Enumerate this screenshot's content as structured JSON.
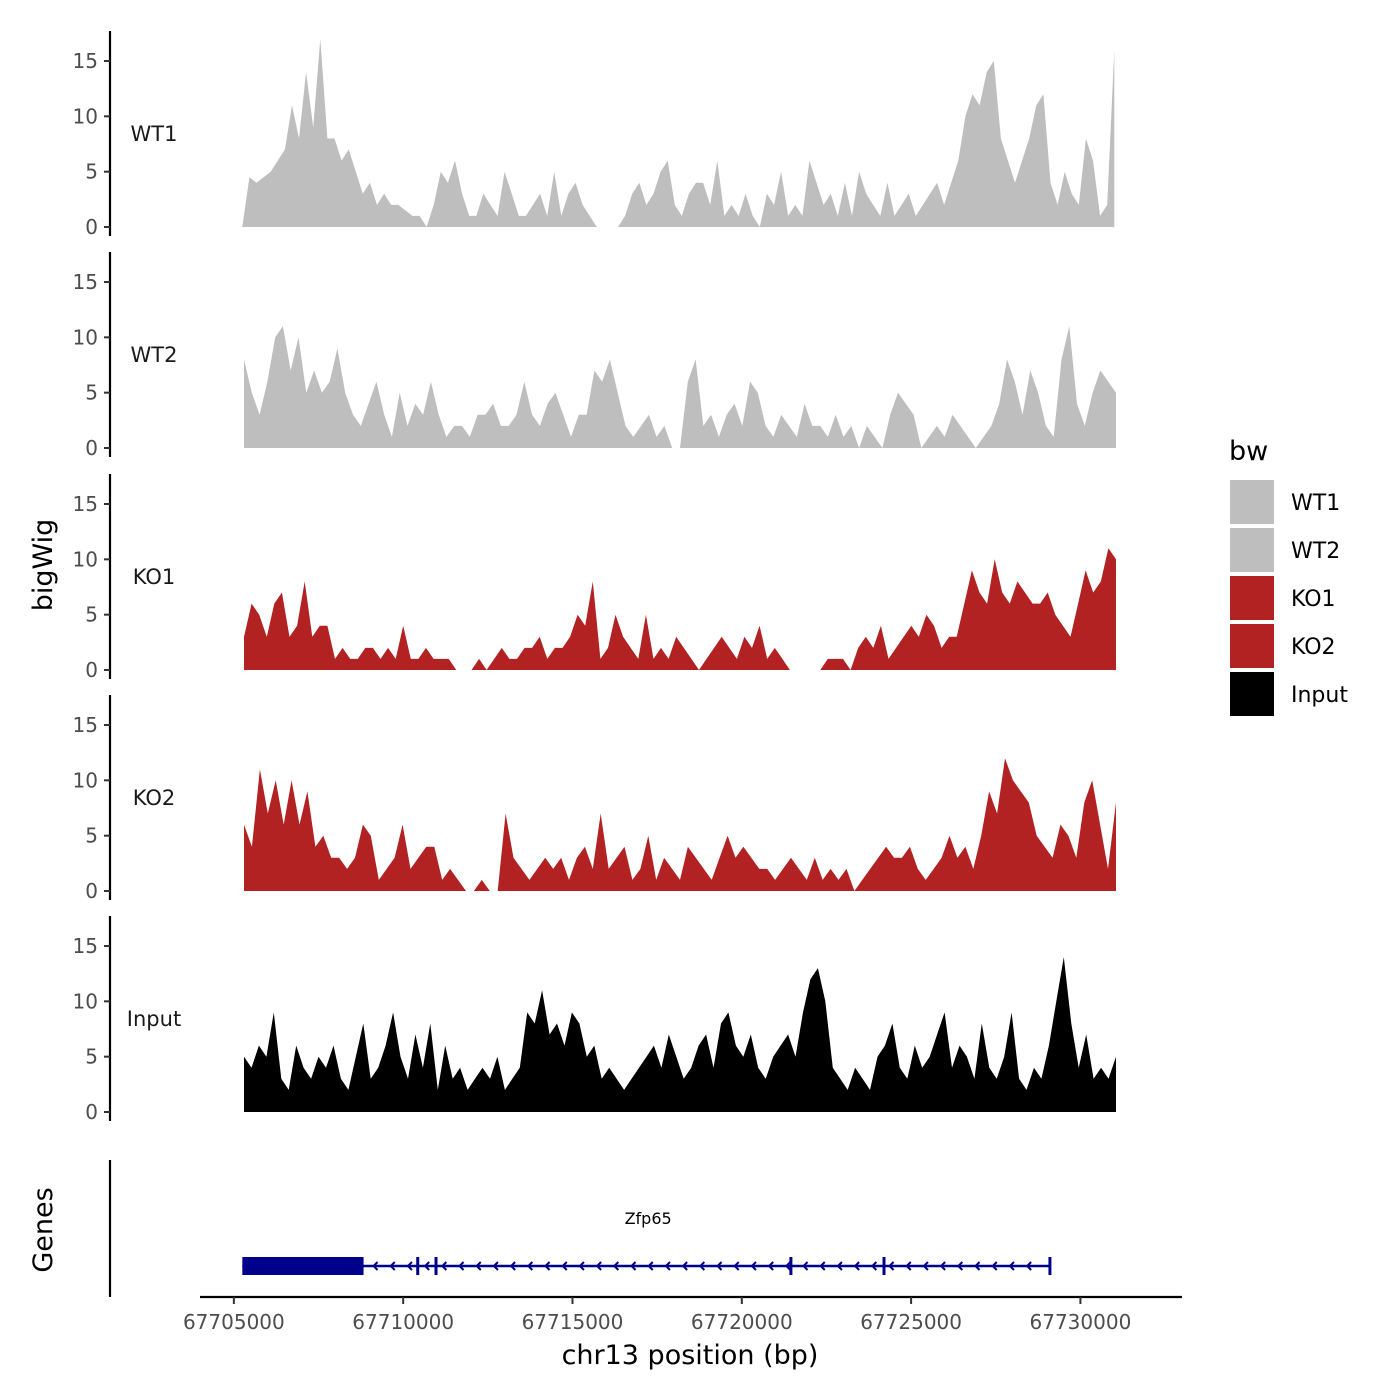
{
  "chart_data": {
    "type": "area",
    "ylabel": "bigWig",
    "xlabel": "chr13 position (bp)",
    "ylim": [
      0,
      17.5
    ],
    "yticks": [
      0,
      5,
      10,
      15
    ],
    "xlim": [
      67704000,
      67733000
    ],
    "xticks": [
      67705000,
      67710000,
      67715000,
      67720000,
      67725000,
      67730000
    ],
    "xtick_labels": [
      "67705000",
      "67710000",
      "67715000",
      "67720000",
      "67725000",
      "67730000"
    ],
    "legend": {
      "title": "bw",
      "position": "right",
      "entries": [
        {
          "name": "WT1",
          "color": "#bebebe"
        },
        {
          "name": "WT2",
          "color": "#bebebe"
        },
        {
          "name": "KO1",
          "color": "#b22222"
        },
        {
          "name": "KO2",
          "color": "#b22222"
        },
        {
          "name": "Input",
          "color": "#000000"
        }
      ]
    },
    "series": [
      {
        "name": "WT1",
        "color": "#bebebe",
        "x_start": 67705250,
        "x_end": 67731000,
        "values": [
          0,
          4.5,
          4,
          4.5,
          5,
          6,
          7,
          11,
          8,
          14,
          9,
          17,
          8,
          8,
          6,
          7,
          5,
          3,
          4,
          2,
          3,
          2,
          2,
          1.5,
          1,
          1,
          0,
          2,
          5,
          4,
          6,
          3,
          1,
          1,
          3,
          2,
          1,
          5,
          3,
          1,
          1,
          2,
          3,
          1,
          5,
          1,
          3,
          4,
          2,
          1,
          0,
          0,
          0,
          0,
          1,
          3,
          4,
          2,
          3,
          5,
          6,
          2,
          1,
          3,
          4,
          4,
          2,
          6,
          1,
          2,
          1,
          3,
          1,
          0,
          3,
          2,
          5,
          1,
          2,
          1,
          6,
          4,
          2,
          3,
          1,
          4,
          1,
          5,
          3,
          2,
          1,
          4,
          1,
          2,
          3,
          1,
          2,
          3,
          4,
          2,
          4,
          6,
          10,
          12,
          11,
          14,
          15,
          8,
          6,
          4,
          6,
          8,
          11,
          12,
          4,
          2,
          5,
          3,
          2,
          8,
          6,
          1,
          2,
          16
        ]
      },
      {
        "name": "WT2",
        "color": "#bebebe",
        "x_start": 67705300,
        "x_end": 67731050,
        "values": [
          8,
          5,
          3,
          6,
          10,
          11,
          7,
          10,
          5,
          7,
          5,
          6,
          9,
          5,
          3,
          2,
          4,
          6,
          3,
          1,
          5,
          2,
          4,
          3,
          6,
          3,
          1,
          2,
          2,
          1,
          3,
          3,
          4,
          2,
          2,
          3,
          6,
          3,
          2,
          4,
          5,
          3,
          1,
          3,
          3,
          7,
          6,
          8,
          5,
          2,
          1,
          2,
          3,
          1,
          2,
          0,
          0,
          6,
          8,
          2,
          3,
          1,
          3,
          4,
          2,
          6,
          5,
          2,
          1,
          3,
          2,
          1,
          4,
          2,
          2,
          1,
          3,
          1,
          2,
          0,
          2,
          1,
          0,
          3,
          5,
          4,
          3,
          0,
          1,
          2,
          1,
          3,
          2,
          1,
          0,
          1,
          2,
          4,
          8,
          6,
          3,
          7,
          5,
          2,
          1,
          8,
          11,
          4,
          2,
          5,
          7,
          6,
          5
        ]
      },
      {
        "name": "KO1",
        "color": "#b22222",
        "x_start": 67705300,
        "x_end": 67731050,
        "values": [
          3,
          6,
          5,
          3,
          6,
          7,
          3,
          4,
          8,
          3,
          4,
          4,
          1,
          2,
          1,
          1,
          2,
          2,
          1,
          2,
          1,
          4,
          1,
          1,
          2,
          1,
          1,
          1,
          0,
          0,
          0,
          1,
          0,
          1,
          2,
          1,
          1,
          2,
          2,
          3,
          1,
          2,
          2,
          3,
          5,
          4,
          8,
          1,
          2,
          5,
          3,
          2,
          1,
          5,
          1,
          2,
          1,
          3,
          2,
          1,
          0,
          1,
          2,
          3,
          2,
          1,
          3,
          2,
          4,
          1,
          2,
          1,
          0,
          0,
          0,
          0,
          0,
          1,
          1,
          1,
          0,
          2,
          3,
          2,
          4,
          1,
          2,
          3,
          4,
          3,
          5,
          4,
          2,
          3,
          3,
          6,
          9,
          7,
          6,
          10,
          7,
          6,
          8,
          7,
          6,
          6,
          7,
          5,
          4,
          3,
          6,
          9,
          7,
          8,
          11,
          10
        ]
      },
      {
        "name": "KO2",
        "color": "#b22222",
        "x_start": 67705300,
        "x_end": 67731050,
        "values": [
          6,
          4,
          11,
          7,
          10,
          6,
          10,
          6,
          9,
          4,
          5,
          3,
          3,
          2,
          3,
          6,
          5,
          1,
          2,
          3,
          6,
          2,
          3,
          4,
          4,
          1,
          2,
          1,
          0,
          0,
          1,
          0,
          0,
          7,
          3,
          2,
          1,
          2,
          3,
          2,
          3,
          1,
          3,
          4,
          2,
          7,
          2,
          3,
          4,
          1,
          2,
          5,
          1,
          3,
          2,
          1,
          4,
          3,
          2,
          1,
          3,
          5,
          3,
          4,
          3,
          2,
          2,
          1,
          2,
          3,
          2,
          1,
          3,
          1,
          2,
          1,
          2,
          0,
          1,
          2,
          3,
          4,
          3,
          3,
          4,
          2,
          1,
          2,
          3,
          5,
          3,
          4,
          2,
          5,
          9,
          7,
          12,
          10,
          9,
          8,
          5,
          4,
          3,
          6,
          5,
          3,
          8,
          10,
          6,
          2,
          8
        ]
      },
      {
        "name": "Input",
        "color": "#000000",
        "x_start": 67705300,
        "x_end": 67731050,
        "values": [
          5,
          4,
          6,
          5,
          9,
          3,
          2,
          6,
          4,
          3,
          5,
          4,
          6,
          3,
          2,
          5,
          8,
          3,
          4,
          6,
          9,
          5,
          3,
          7,
          4,
          8,
          2,
          6,
          3,
          4,
          2,
          3,
          4,
          3,
          5,
          2,
          3,
          4,
          9,
          8,
          11,
          7,
          8,
          6,
          9,
          8,
          5,
          6,
          3,
          4,
          3,
          2,
          3,
          4,
          5,
          6,
          4,
          7,
          5,
          3,
          4,
          6,
          7,
          4,
          8,
          9,
          6,
          5,
          7,
          4,
          3,
          5,
          6,
          7,
          5,
          9,
          12,
          13,
          10,
          4,
          3,
          2,
          4,
          3,
          2,
          5,
          6,
          8,
          4,
          3,
          6,
          4,
          5,
          7,
          9,
          4,
          6,
          5,
          3,
          8,
          4,
          3,
          5,
          9,
          3,
          2,
          4,
          3,
          6,
          10,
          14,
          8,
          4,
          7,
          3,
          4,
          3,
          5
        ]
      }
    ],
    "genes_track": {
      "label": "Genes",
      "genes": [
        {
          "name": "Zfp65",
          "color": "#00008b",
          "start": 67705250,
          "end": 67729100,
          "strand": "-",
          "thick_start": 67705250,
          "thick_end": 67708830,
          "exon_marks": [
            67710430,
            67710970,
            67721450,
            67724200,
            67729100
          ]
        }
      ]
    }
  }
}
